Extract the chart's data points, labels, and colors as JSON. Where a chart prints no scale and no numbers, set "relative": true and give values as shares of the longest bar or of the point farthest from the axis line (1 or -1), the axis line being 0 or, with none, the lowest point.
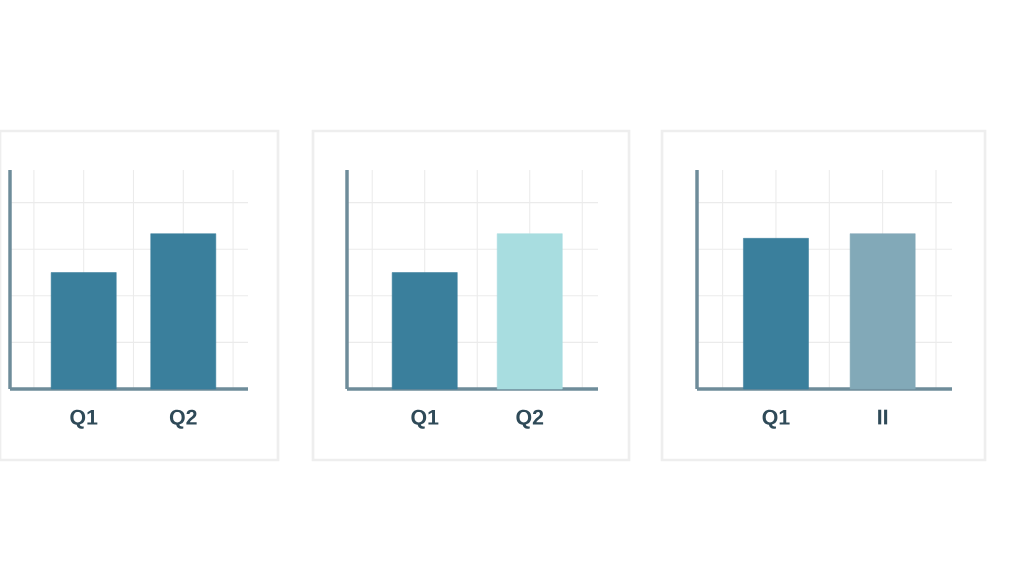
{
  "chart_data": [
    {
      "type": "bar",
      "relative": true,
      "grid": true,
      "categories": [
        "Q1",
        "Q2"
      ],
      "values": [
        0.75,
        1
      ],
      "colors": [
        "#3a7f9c",
        "#3a7f9c"
      ]
    },
    {
      "type": "bar",
      "relative": true,
      "grid": true,
      "categories": [
        "Q1",
        "Q2"
      ],
      "values": [
        0.75,
        1
      ],
      "colors": [
        "#3a7f9c",
        "#a8dde0"
      ]
    },
    {
      "type": "bar",
      "relative": true,
      "grid": true,
      "categories": [
        "Q1",
        "II"
      ],
      "values": [
        0.97,
        1
      ],
      "colors": [
        "#3a7f9c",
        "#82a9b8"
      ]
    }
  ]
}
